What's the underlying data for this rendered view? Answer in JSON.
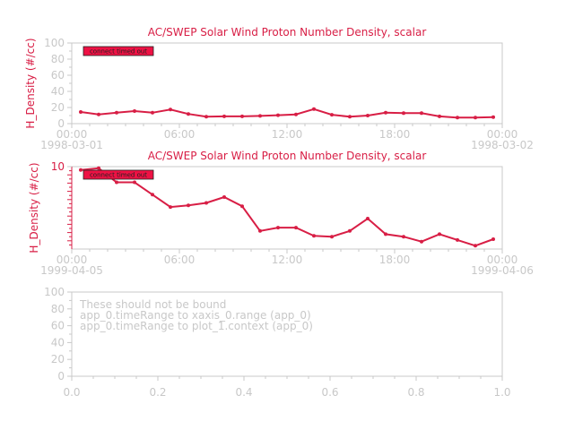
{
  "colors": {
    "accent": "#d81e45",
    "axis": "#c8c8c8",
    "badge": "#ee1144"
  },
  "chart_data": [
    {
      "type": "line",
      "title": "AC/SWEP  Solar Wind Proton Number Density, scalar",
      "ylabel": "H_Density (#/cc)",
      "xlabel": "",
      "ylim": [
        0,
        100
      ],
      "y_ticks": [
        "0",
        "20",
        "40",
        "60",
        "80",
        "100"
      ],
      "x_ticks": [
        "00:00",
        "06:00",
        "12:00",
        "18:00",
        "00:00"
      ],
      "x_dates": [
        "1998-03-01",
        "1998-03-02"
      ],
      "badge": "connect timed out",
      "grid": false,
      "x": [
        "00:00",
        "01:00",
        "02:00",
        "03:00",
        "04:00",
        "05:00",
        "06:00",
        "07:00",
        "08:00",
        "09:00",
        "10:00",
        "11:00",
        "12:00",
        "13:00",
        "14:00",
        "15:00",
        "16:00",
        "17:00",
        "18:00",
        "19:00",
        "20:00",
        "21:00",
        "22:00",
        "23:00"
      ],
      "values": [
        14.5,
        11.5,
        13.5,
        15.5,
        13.5,
        17.5,
        12.0,
        8.5,
        9.0,
        9.0,
        9.5,
        10.5,
        11.5,
        18.0,
        11.0,
        8.5,
        10.0,
        13.5,
        13.0,
        13.0,
        9.0,
        7.5,
        7.5,
        8.0
      ]
    },
    {
      "type": "line",
      "title": "AC/SWEP  Solar Wind Proton Number Density, scalar",
      "ylabel": "H_Density (#/cc)",
      "xlabel": "",
      "ylim": [
        0,
        10
      ],
      "y_ticks": [
        "10"
      ],
      "x_ticks": [
        "00:00",
        "06:00",
        "12:00",
        "18:00",
        "00:00"
      ],
      "x_dates": [
        "1999-04-05",
        "1999-04-06"
      ],
      "badge": "connect timed out",
      "grid": false,
      "x": [
        "00:00",
        "01:00",
        "02:00",
        "03:00",
        "04:00",
        "05:00",
        "06:00",
        "07:00",
        "08:00",
        "09:00",
        "10:00",
        "11:00",
        "12:00",
        "13:00",
        "14:00",
        "15:00",
        "16:00",
        "17:00",
        "18:00",
        "19:00",
        "20:00",
        "21:00",
        "22:00",
        "23:00"
      ],
      "values": [
        9.6,
        9.8,
        8.1,
        8.1,
        6.6,
        5.1,
        5.3,
        5.6,
        6.3,
        5.2,
        2.2,
        2.6,
        2.6,
        1.6,
        1.5,
        2.2,
        3.7,
        1.8,
        1.5,
        0.9,
        1.8,
        1.1,
        0.4,
        1.2
      ]
    },
    {
      "type": "line",
      "title": "",
      "ylabel": "",
      "xlabel": "",
      "xlim": [
        0,
        1
      ],
      "ylim": [
        0,
        100
      ],
      "y_ticks": [
        "0",
        "20",
        "40",
        "60",
        "80",
        "100"
      ],
      "x_ticks": [
        "0.0",
        "0.2",
        "0.4",
        "0.6",
        "0.8",
        "1.0"
      ],
      "grid": false,
      "messages": [
        "These should not be bound",
        "app_0.timeRange to xaxis_0.range  (app_0)",
        "app_0.timeRange to plot_1.context  (app_0)"
      ],
      "series": []
    }
  ]
}
